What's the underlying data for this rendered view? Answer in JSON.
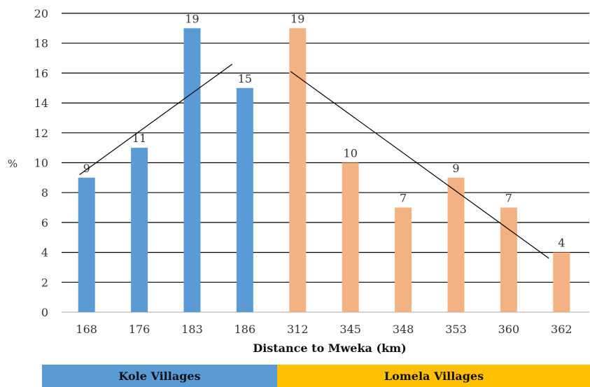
{
  "chart_data": {
    "type": "bar",
    "xlabel": "Distance to Mweka (km)",
    "ylabel": "%",
    "ylim": [
      0,
      20
    ],
    "yticks": [
      0,
      2,
      4,
      6,
      8,
      10,
      12,
      14,
      16,
      18,
      20
    ],
    "grid": true,
    "categories": [
      "168",
      "176",
      "183",
      "186",
      "312",
      "345",
      "348",
      "353",
      "360",
      "362"
    ],
    "values": [
      9,
      11,
      19,
      15,
      19,
      10,
      7,
      9,
      7,
      4
    ],
    "data_labels": [
      "9",
      "11",
      "19",
      "15",
      "19",
      "10",
      "7",
      "9",
      "7",
      "4"
    ],
    "groups": [
      {
        "name": "Kole Villages",
        "color": "#5b9bd5",
        "band_color": "#5b9bd5",
        "indices": [
          0,
          1,
          2,
          3
        ]
      },
      {
        "name": "Lomela Villages",
        "color": "#f4b183",
        "band_color": "#ffc000",
        "indices": [
          4,
          5,
          6,
          7,
          8,
          9
        ]
      }
    ],
    "trendlines": [
      {
        "from_index": 0,
        "to_index": 3,
        "start": 9.2,
        "end": 16.6
      },
      {
        "from_index": 4,
        "to_index": 9,
        "start": 16.1,
        "end": 3.6
      }
    ]
  }
}
